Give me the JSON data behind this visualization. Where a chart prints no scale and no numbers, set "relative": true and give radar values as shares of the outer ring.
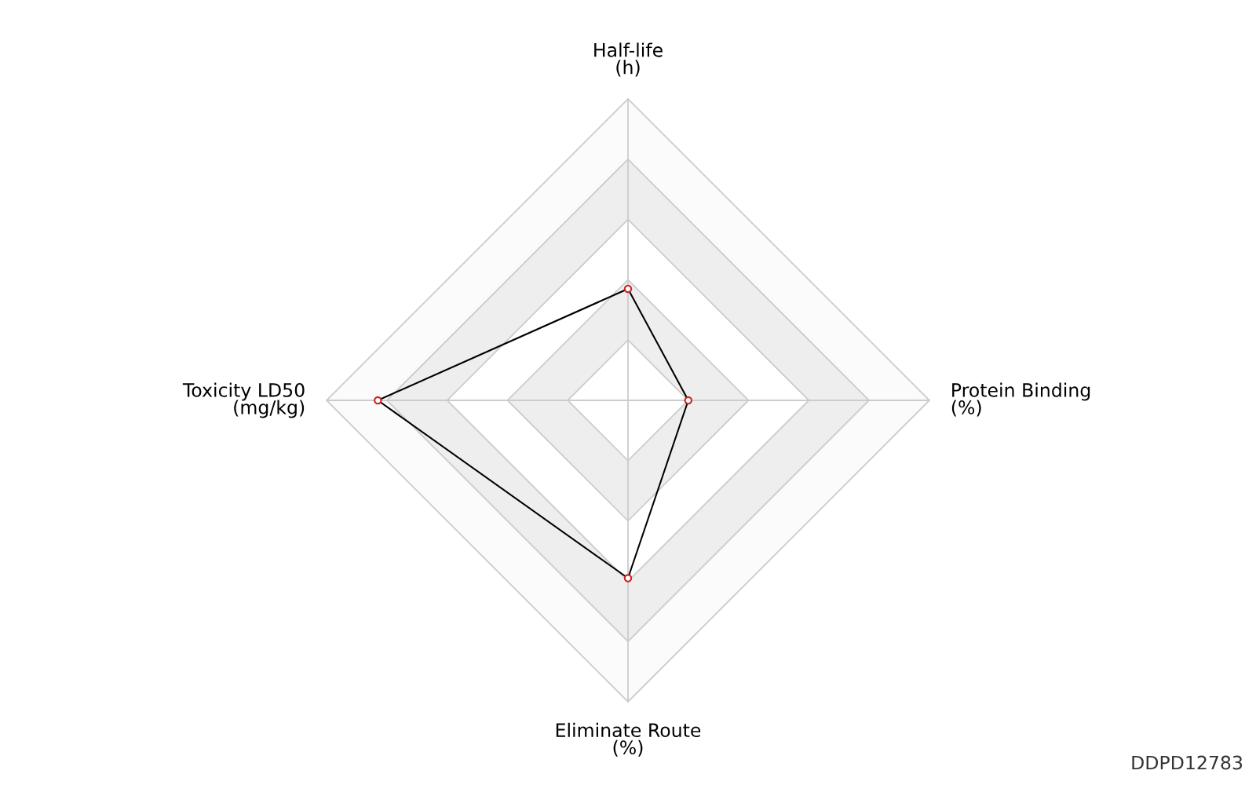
{
  "chart_data": {
    "type": "radar",
    "relative": true,
    "categories": [
      "Half-life\n(h)",
      "Protein Binding\n(%)",
      "Eliminate Route\n(%)",
      "Toxicity LD50\n(mg/kg)"
    ],
    "series": [
      {
        "color": "#000000",
        "values": [
          0.37,
          0.2,
          0.59,
          0.83
        ]
      }
    ],
    "grid": true,
    "marker": "circle",
    "line_style": "solid",
    "annotations": [
      "DDPD12783"
    ]
  }
}
